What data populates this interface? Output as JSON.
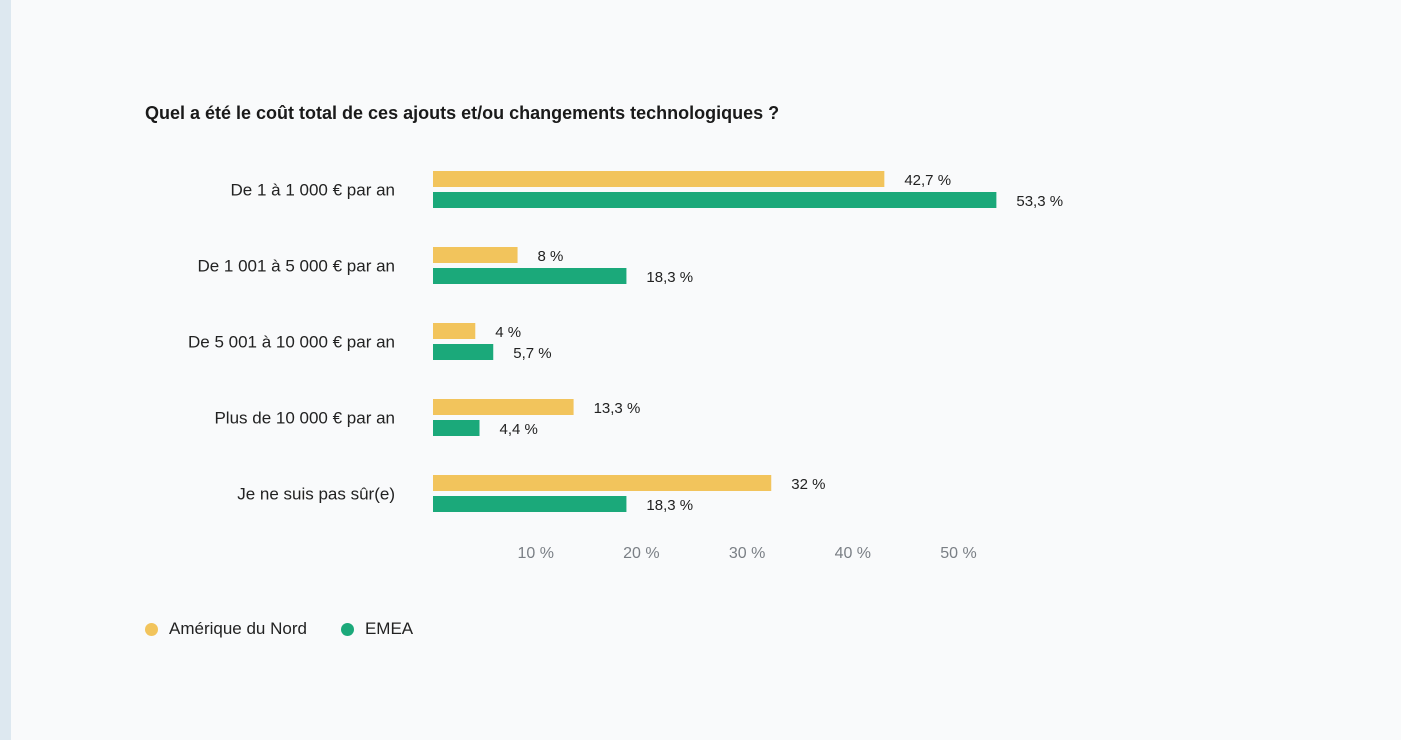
{
  "chart_data": {
    "type": "bar",
    "orientation": "horizontal",
    "title": "Quel a été le coût total de ces ajouts et/ou changements technologiques ?",
    "categories": [
      "De 1 à 1 000 € par an",
      "De 1 001 à 5 000 € par an",
      "De 5 001 à 10 000 € par an",
      "Plus de 10 000 € par an",
      "Je ne suis pas sûr(e)"
    ],
    "series": [
      {
        "name": "Amérique du Nord",
        "color": "#f2c45c",
        "values": [
          42.7,
          8,
          4,
          13.3,
          32
        ],
        "labels": [
          "42,7 %",
          "8 %",
          "4 %",
          "13,3 %",
          "32 %"
        ]
      },
      {
        "name": "EMEA",
        "color": "#1ba97a",
        "values": [
          53.3,
          18.3,
          5.7,
          4.4,
          18.3
        ],
        "labels": [
          "53,3 %",
          "18,3 %",
          "5,7 %",
          "4,4 %",
          "18,3 %"
        ]
      }
    ],
    "xlim": [
      0,
      53.3
    ],
    "x_ticks": [
      10,
      20,
      30,
      40,
      50
    ],
    "x_tick_labels": [
      "10 %",
      "20 %",
      "30 %",
      "40 %",
      "50 %"
    ],
    "grid": false,
    "legend_position": "bottom-left"
  }
}
